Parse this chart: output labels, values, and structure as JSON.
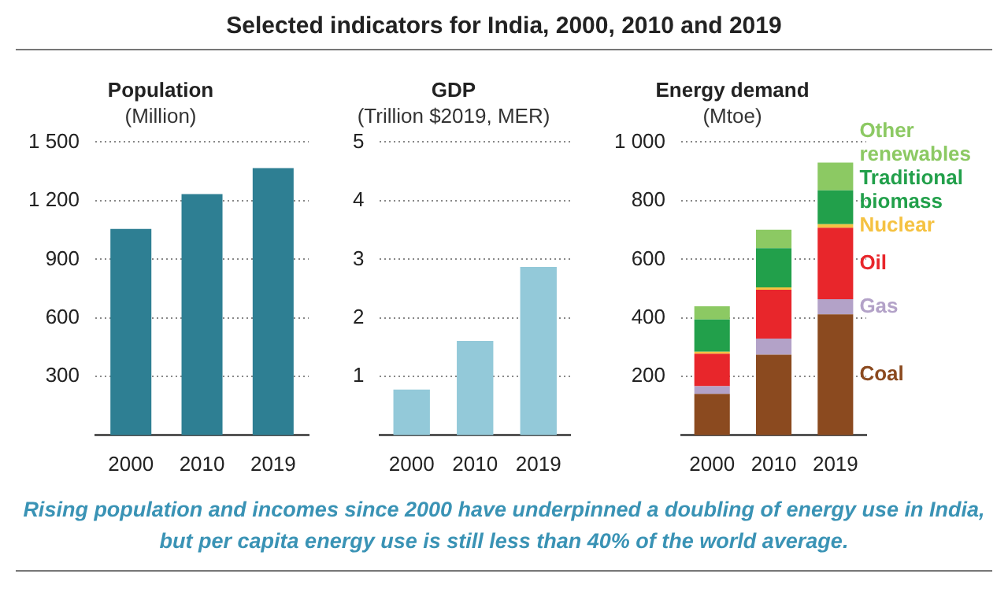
{
  "chart_data": [
    {
      "type": "other",
      "title": "Selected indicators for India, 2000, 2010 and 2019",
      "annotations": [
        "Rising population and incomes since 2000 have underpinned a doubling of energy use in India, but per capita energy use is still less than 40% of the world average."
      ]
    },
    {
      "type": "bar",
      "title": "Population",
      "subtitle": "(Million)",
      "categories": [
        "2000",
        "2010",
        "2019"
      ],
      "values": [
        1056,
        1234,
        1367
      ],
      "color": "#2e7f93",
      "ylim": [
        0,
        1500
      ],
      "yticks": [
        300,
        600,
        900,
        {
          "value": 1200,
          "label": "1 200"
        },
        {
          "value": 1500,
          "label": "1 500"
        }
      ],
      "grid": "y",
      "legend": false
    },
    {
      "type": "bar",
      "title": "GDP",
      "subtitle": "(Trillion $2019, MER)",
      "categories": [
        "2000",
        "2010",
        "2019"
      ],
      "values": [
        0.78,
        1.61,
        2.87
      ],
      "color": "#93c9d9",
      "ylim": [
        0,
        5
      ],
      "yticks": [
        1,
        2,
        3,
        4,
        5
      ],
      "grid": "y",
      "legend": false
    },
    {
      "type": "bar",
      "title": "Energy demand",
      "subtitle": "(Mtoe)",
      "categories": [
        "2000",
        "2010",
        "2019"
      ],
      "stacked": true,
      "ylim": [
        0,
        1000
      ],
      "yticks": [
        200,
        400,
        600,
        800,
        {
          "value": 1000,
          "label": "1 000"
        }
      ],
      "grid": "y",
      "legend": false,
      "series": [
        {
          "name": "Coal",
          "color": "#8b4a1f",
          "values": [
            141,
            275,
            412
          ]
        },
        {
          "name": "Gas",
          "color": "#b3a2c8",
          "values": [
            26,
            55,
            52
          ]
        },
        {
          "name": "Oil",
          "color": "#e8262b",
          "values": [
            111,
            166,
            244
          ]
        },
        {
          "name": "Nuclear",
          "color": "#f5c242",
          "values": [
            7,
            8,
            12
          ]
        },
        {
          "name": "Traditional biomass",
          "color": "#22a04b",
          "values": [
            110,
            134,
            115
          ]
        },
        {
          "name": "Other renewables",
          "color": "#8cc963",
          "values": [
            45,
            63,
            95
          ]
        }
      ]
    }
  ]
}
